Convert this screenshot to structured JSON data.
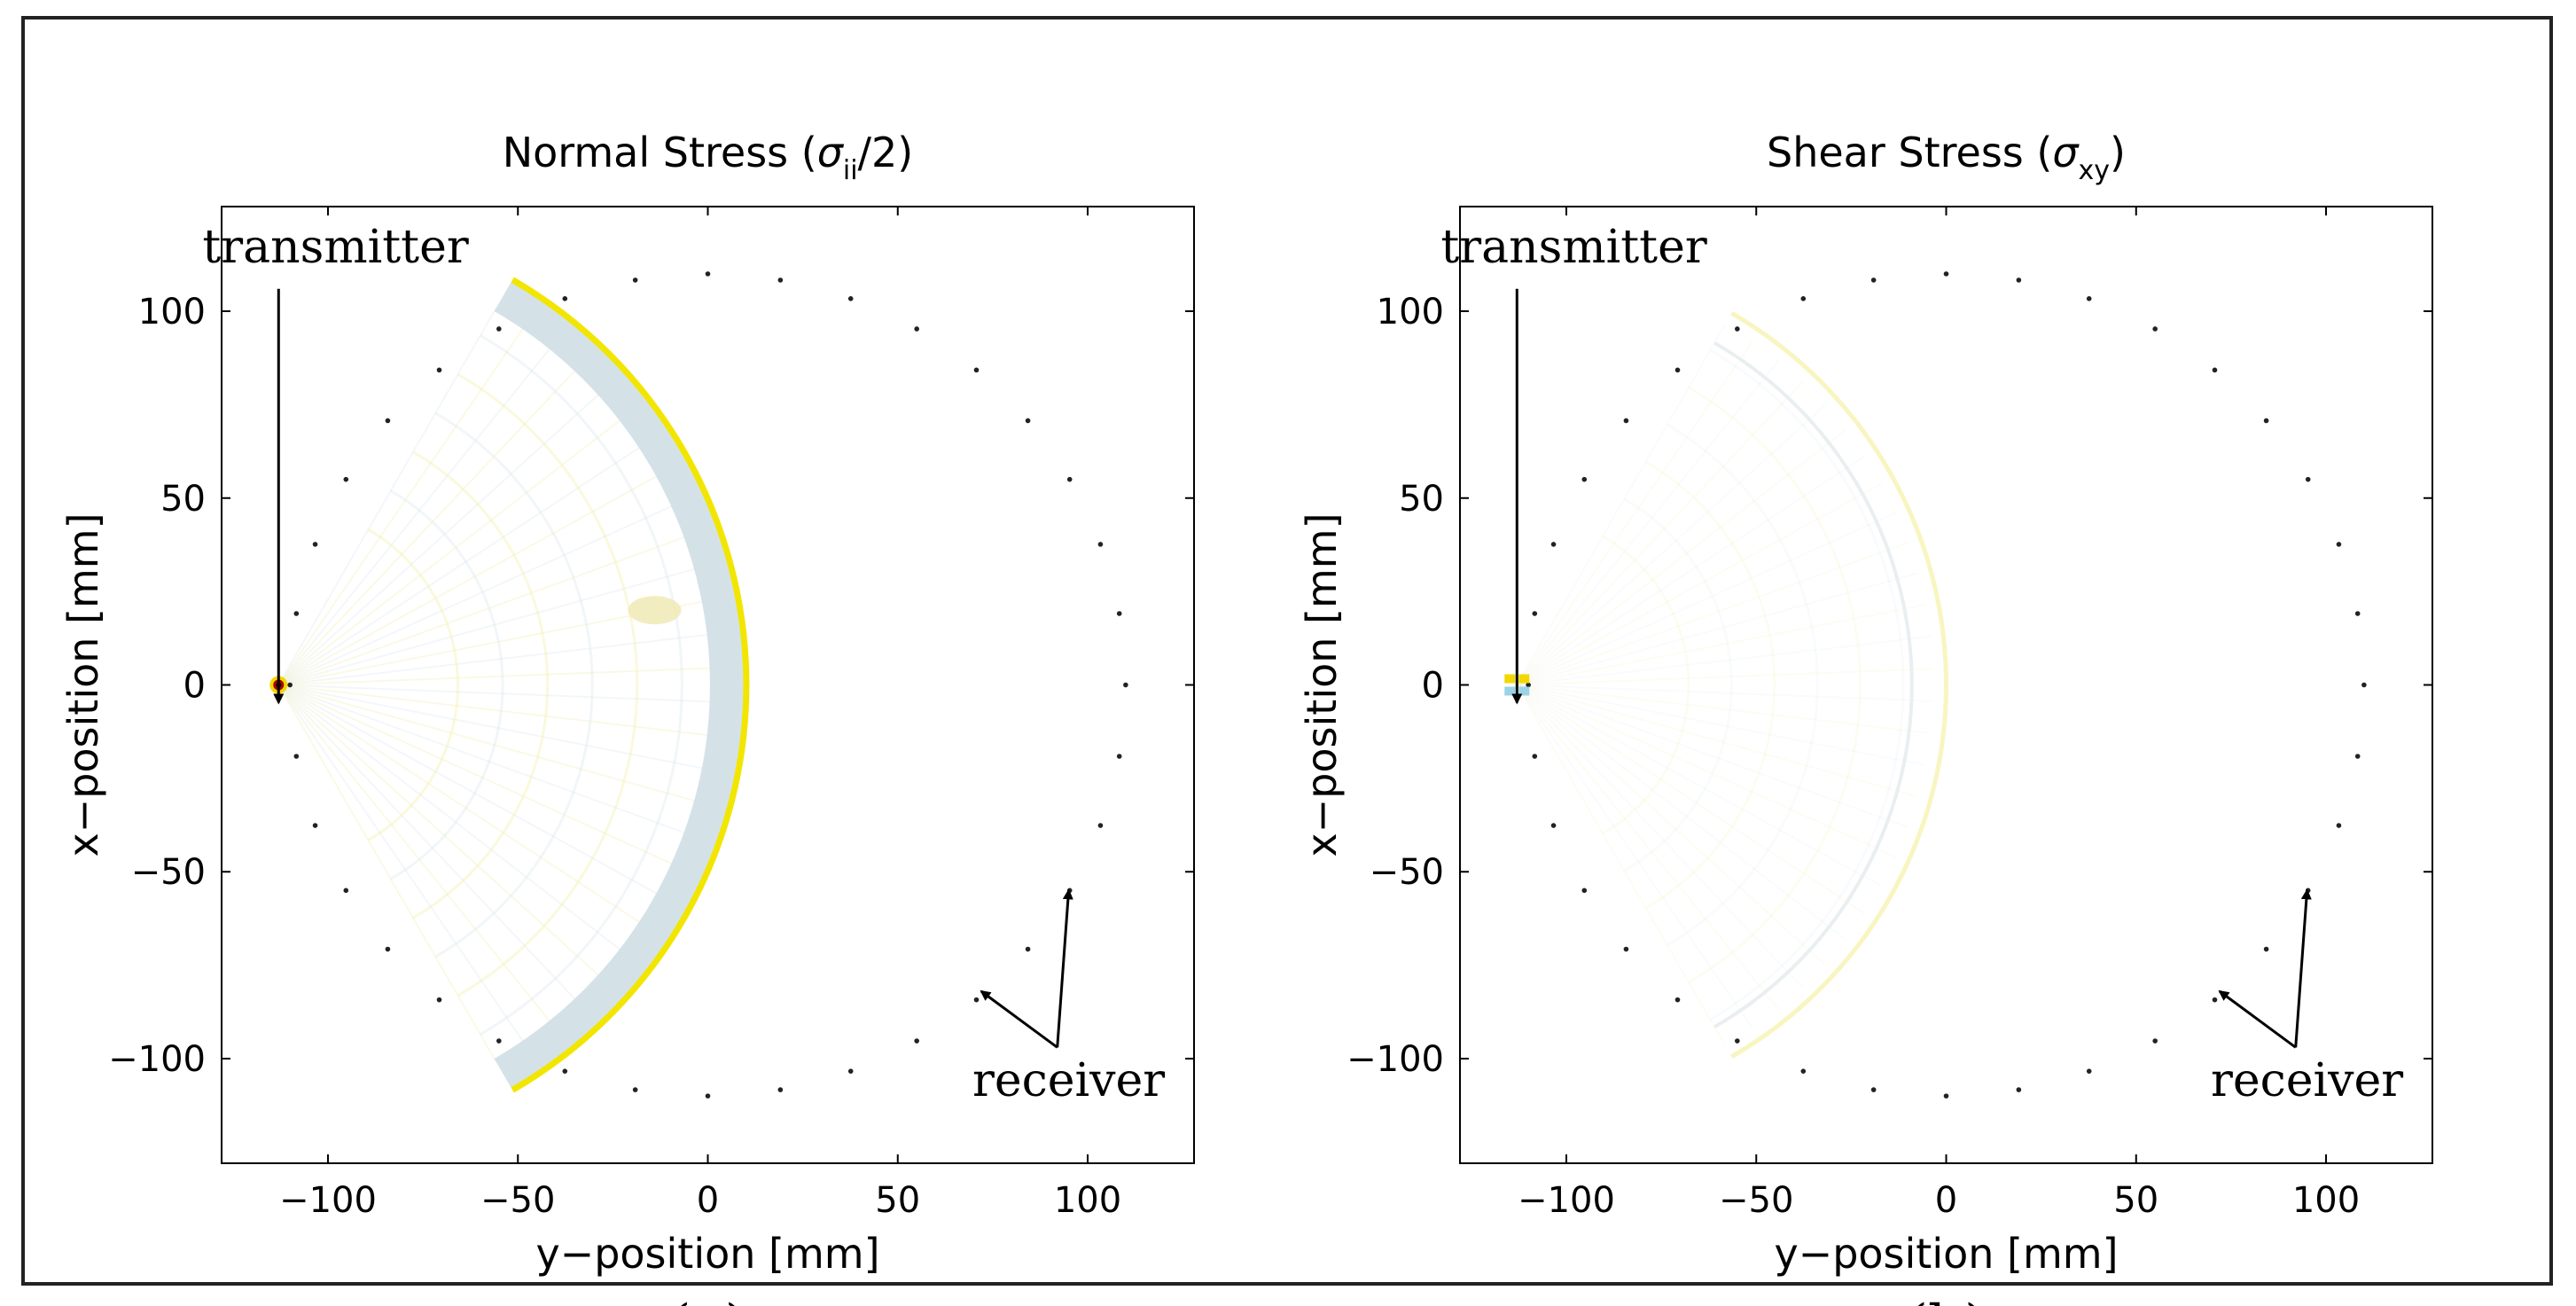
{
  "chart_data": [
    {
      "type": "scatter",
      "panel_label": "(a)",
      "title_text": "Normal Stress (",
      "title_symbol": "σ",
      "title_subscript": "ii",
      "title_suffix": "/2)",
      "xlabel": "y−position [mm]",
      "ylabel": "x−position [mm]",
      "xlim": [
        -128,
        128
      ],
      "ylim": [
        128,
        -128
      ],
      "xticks": [
        -100,
        -50,
        0,
        50,
        100
      ],
      "xtick_labels": [
        "−100",
        "−50",
        "0",
        "50",
        "100"
      ],
      "yticks": [
        -100,
        -50,
        0,
        50,
        100
      ],
      "ytick_labels": [
        "−100",
        "−50",
        "0",
        "50",
        "100"
      ],
      "transmitter": {
        "x": -113,
        "y": 0
      },
      "receiver_ring": {
        "center": [
          0,
          0
        ],
        "radius": 110,
        "count": 36
      },
      "wavefront": {
        "center": [
          -113,
          0
        ],
        "radius": 118,
        "half_angle_deg": 60,
        "color": "#f2e600"
      },
      "annotations": {
        "receiver_label": "receiver",
        "transmitter_label": "transmitter",
        "receiver_arrow_targets": [
          [
            72,
            -82
          ],
          [
            95,
            -55
          ]
        ]
      }
    },
    {
      "type": "scatter",
      "panel_label": "(b)",
      "title_text": "Shear Stress (",
      "title_symbol": "σ",
      "title_subscript": "xy",
      "title_suffix": ")",
      "xlabel": "y−position [mm]",
      "ylabel": "x−position [mm]",
      "xlim": [
        -128,
        128
      ],
      "ylim": [
        128,
        -128
      ],
      "xticks": [
        -100,
        -50,
        0,
        50,
        100
      ],
      "xtick_labels": [
        "−100",
        "−50",
        "0",
        "50",
        "100"
      ],
      "yticks": [
        -100,
        -50,
        0,
        50,
        100
      ],
      "ytick_labels": [
        "−100",
        "−50",
        "0",
        "50",
        "100"
      ],
      "transmitter": {
        "x": -113,
        "y": 0
      },
      "receiver_ring": {
        "center": [
          0,
          0
        ],
        "radius": 110,
        "count": 36
      },
      "wavefront": {
        "center": [
          -113,
          0
        ],
        "radius": 113,
        "half_angle_deg": 60,
        "color": "#f6f3b0"
      },
      "annotations": {
        "receiver_label": "receiver",
        "transmitter_label": "transmitter",
        "receiver_arrow_targets": [
          [
            72,
            -82
          ],
          [
            95,
            -55
          ]
        ]
      }
    }
  ]
}
